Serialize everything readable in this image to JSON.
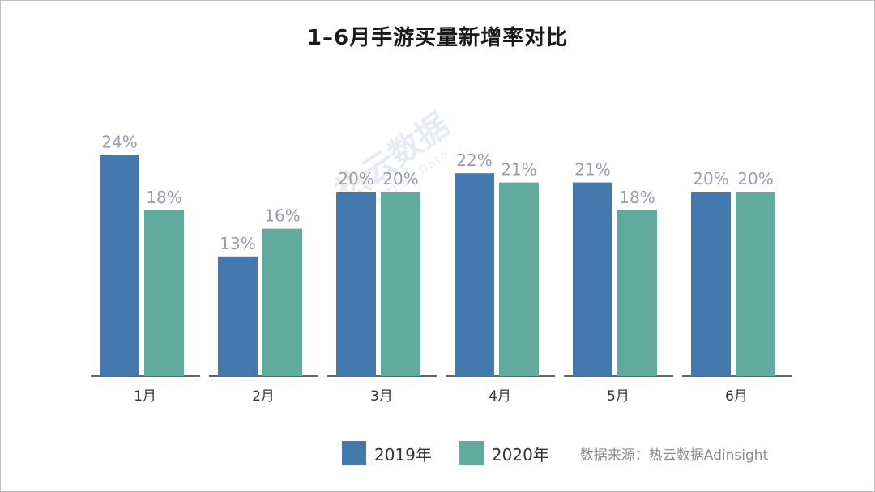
{
  "title": "1–6月手游买量新增率对比",
  "source": "数据来源：热云数据Adinsight",
  "watermark": {
    "brand": "热云数据",
    "tagline": "More Than Data"
  },
  "colors": {
    "series2019": "#4479ae",
    "series2020": "#61ab9e",
    "label": "#9a9ab5",
    "axis": "#333333"
  },
  "chart_data": {
    "type": "bar",
    "title": "1–6月手游买量新增率对比",
    "categories": [
      "1月",
      "2月",
      "3月",
      "4月",
      "5月",
      "6月"
    ],
    "series": [
      {
        "name": "2019年",
        "values": [
          24,
          13,
          20,
          22,
          21,
          20
        ]
      },
      {
        "name": "2020年",
        "values": [
          18,
          16,
          20,
          21,
          18,
          20
        ]
      }
    ],
    "value_suffix": "%",
    "ylim": [
      0,
      24
    ],
    "grid": false,
    "legend_position": "bottom"
  }
}
